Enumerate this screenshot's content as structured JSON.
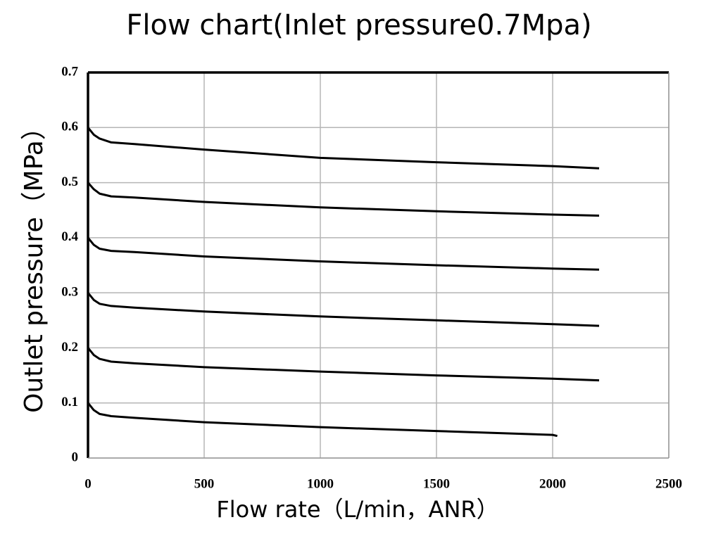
{
  "chart_data": {
    "type": "line",
    "title": "Flow chart(Inlet pressure0.7Mpa)",
    "x_label": "Flow rate（L/min，ANR）",
    "y_label": "Outlet pressure（MPa）",
    "xlim": [
      0,
      2500
    ],
    "xticks": [
      0,
      500,
      1000,
      1500,
      2000,
      2500
    ],
    "ylim": [
      0,
      0.7
    ],
    "yticks": [
      0,
      0.1,
      0.2,
      0.3,
      0.4,
      0.5,
      0.6,
      0.7
    ],
    "grid": true,
    "series": [
      {
        "color": "#000000",
        "x": [
          0,
          25,
          50,
          100,
          200,
          500,
          1000,
          1500,
          2000,
          2200
        ],
        "values": [
          0.6,
          0.587,
          0.58,
          0.573,
          0.57,
          0.56,
          0.545,
          0.537,
          0.53,
          0.526
        ]
      },
      {
        "color": "#000000",
        "x": [
          0,
          25,
          50,
          100,
          200,
          500,
          1000,
          1500,
          2000,
          2200
        ],
        "values": [
          0.5,
          0.488,
          0.48,
          0.475,
          0.473,
          0.465,
          0.455,
          0.448,
          0.442,
          0.44
        ]
      },
      {
        "color": "#000000",
        "x": [
          0,
          25,
          50,
          100,
          200,
          500,
          1000,
          1500,
          2000,
          2200
        ],
        "values": [
          0.4,
          0.387,
          0.38,
          0.376,
          0.374,
          0.366,
          0.357,
          0.35,
          0.344,
          0.342
        ]
      },
      {
        "color": "#000000",
        "x": [
          0,
          25,
          50,
          100,
          200,
          500,
          1000,
          1500,
          2000,
          2200
        ],
        "values": [
          0.3,
          0.287,
          0.28,
          0.276,
          0.273,
          0.266,
          0.257,
          0.25,
          0.243,
          0.24
        ]
      },
      {
        "color": "#000000",
        "x": [
          0,
          25,
          50,
          100,
          200,
          500,
          1000,
          1500,
          2000,
          2200
        ],
        "values": [
          0.2,
          0.187,
          0.18,
          0.175,
          0.172,
          0.165,
          0.157,
          0.15,
          0.144,
          0.141
        ]
      },
      {
        "color": "#000000",
        "x": [
          0,
          25,
          50,
          100,
          200,
          500,
          1000,
          1500,
          2000,
          2020
        ],
        "values": [
          0.1,
          0.087,
          0.08,
          0.076,
          0.073,
          0.065,
          0.056,
          0.049,
          0.042,
          0.04
        ]
      }
    ]
  }
}
